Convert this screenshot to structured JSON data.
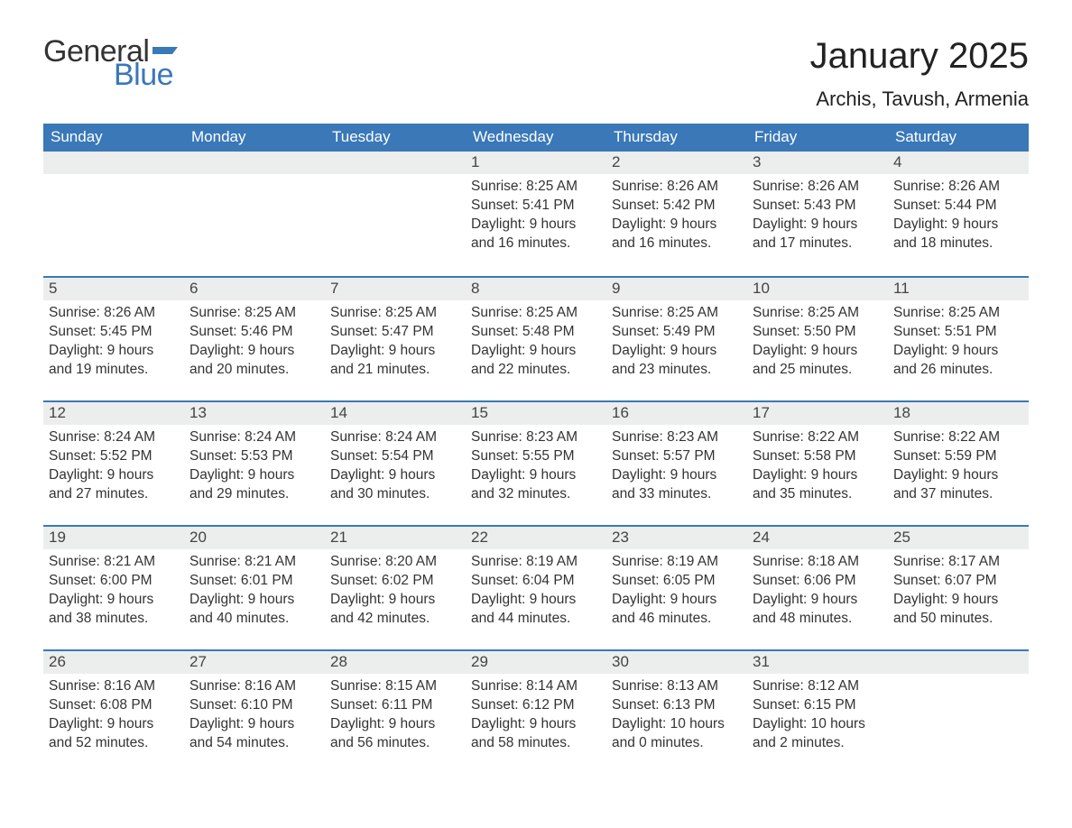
{
  "logo": {
    "text1": "General",
    "text2": "Blue",
    "flag_color": "#3a78b8"
  },
  "title": "January 2025",
  "location": "Archis, Tavush, Armenia",
  "colors": {
    "header_bg": "#3a78b8",
    "daynum_bg": "#eceded",
    "week_border": "#3a78b8",
    "text": "#333333",
    "background": "#ffffff"
  },
  "typography": {
    "title_fontsize": 40,
    "location_fontsize": 22,
    "dow_fontsize": 17,
    "daynum_fontsize": 17,
    "body_fontsize": 15.5
  },
  "layout": {
    "columns": 7,
    "rows": 5,
    "cell_min_height": 138
  },
  "days_of_week": [
    "Sunday",
    "Monday",
    "Tuesday",
    "Wednesday",
    "Thursday",
    "Friday",
    "Saturday"
  ],
  "weeks": [
    [
      {
        "n": "",
        "sunrise": "",
        "sunset": "",
        "daylight": ""
      },
      {
        "n": "",
        "sunrise": "",
        "sunset": "",
        "daylight": ""
      },
      {
        "n": "",
        "sunrise": "",
        "sunset": "",
        "daylight": ""
      },
      {
        "n": "1",
        "sunrise": "8:25 AM",
        "sunset": "5:41 PM",
        "daylight": "9 hours and 16 minutes."
      },
      {
        "n": "2",
        "sunrise": "8:26 AM",
        "sunset": "5:42 PM",
        "daylight": "9 hours and 16 minutes."
      },
      {
        "n": "3",
        "sunrise": "8:26 AM",
        "sunset": "5:43 PM",
        "daylight": "9 hours and 17 minutes."
      },
      {
        "n": "4",
        "sunrise": "8:26 AM",
        "sunset": "5:44 PM",
        "daylight": "9 hours and 18 minutes."
      }
    ],
    [
      {
        "n": "5",
        "sunrise": "8:26 AM",
        "sunset": "5:45 PM",
        "daylight": "9 hours and 19 minutes."
      },
      {
        "n": "6",
        "sunrise": "8:25 AM",
        "sunset": "5:46 PM",
        "daylight": "9 hours and 20 minutes."
      },
      {
        "n": "7",
        "sunrise": "8:25 AM",
        "sunset": "5:47 PM",
        "daylight": "9 hours and 21 minutes."
      },
      {
        "n": "8",
        "sunrise": "8:25 AM",
        "sunset": "5:48 PM",
        "daylight": "9 hours and 22 minutes."
      },
      {
        "n": "9",
        "sunrise": "8:25 AM",
        "sunset": "5:49 PM",
        "daylight": "9 hours and 23 minutes."
      },
      {
        "n": "10",
        "sunrise": "8:25 AM",
        "sunset": "5:50 PM",
        "daylight": "9 hours and 25 minutes."
      },
      {
        "n": "11",
        "sunrise": "8:25 AM",
        "sunset": "5:51 PM",
        "daylight": "9 hours and 26 minutes."
      }
    ],
    [
      {
        "n": "12",
        "sunrise": "8:24 AM",
        "sunset": "5:52 PM",
        "daylight": "9 hours and 27 minutes."
      },
      {
        "n": "13",
        "sunrise": "8:24 AM",
        "sunset": "5:53 PM",
        "daylight": "9 hours and 29 minutes."
      },
      {
        "n": "14",
        "sunrise": "8:24 AM",
        "sunset": "5:54 PM",
        "daylight": "9 hours and 30 minutes."
      },
      {
        "n": "15",
        "sunrise": "8:23 AM",
        "sunset": "5:55 PM",
        "daylight": "9 hours and 32 minutes."
      },
      {
        "n": "16",
        "sunrise": "8:23 AM",
        "sunset": "5:57 PM",
        "daylight": "9 hours and 33 minutes."
      },
      {
        "n": "17",
        "sunrise": "8:22 AM",
        "sunset": "5:58 PM",
        "daylight": "9 hours and 35 minutes."
      },
      {
        "n": "18",
        "sunrise": "8:22 AM",
        "sunset": "5:59 PM",
        "daylight": "9 hours and 37 minutes."
      }
    ],
    [
      {
        "n": "19",
        "sunrise": "8:21 AM",
        "sunset": "6:00 PM",
        "daylight": "9 hours and 38 minutes."
      },
      {
        "n": "20",
        "sunrise": "8:21 AM",
        "sunset": "6:01 PM",
        "daylight": "9 hours and 40 minutes."
      },
      {
        "n": "21",
        "sunrise": "8:20 AM",
        "sunset": "6:02 PM",
        "daylight": "9 hours and 42 minutes."
      },
      {
        "n": "22",
        "sunrise": "8:19 AM",
        "sunset": "6:04 PM",
        "daylight": "9 hours and 44 minutes."
      },
      {
        "n": "23",
        "sunrise": "8:19 AM",
        "sunset": "6:05 PM",
        "daylight": "9 hours and 46 minutes."
      },
      {
        "n": "24",
        "sunrise": "8:18 AM",
        "sunset": "6:06 PM",
        "daylight": "9 hours and 48 minutes."
      },
      {
        "n": "25",
        "sunrise": "8:17 AM",
        "sunset": "6:07 PM",
        "daylight": "9 hours and 50 minutes."
      }
    ],
    [
      {
        "n": "26",
        "sunrise": "8:16 AM",
        "sunset": "6:08 PM",
        "daylight": "9 hours and 52 minutes."
      },
      {
        "n": "27",
        "sunrise": "8:16 AM",
        "sunset": "6:10 PM",
        "daylight": "9 hours and 54 minutes."
      },
      {
        "n": "28",
        "sunrise": "8:15 AM",
        "sunset": "6:11 PM",
        "daylight": "9 hours and 56 minutes."
      },
      {
        "n": "29",
        "sunrise": "8:14 AM",
        "sunset": "6:12 PM",
        "daylight": "9 hours and 58 minutes."
      },
      {
        "n": "30",
        "sunrise": "8:13 AM",
        "sunset": "6:13 PM",
        "daylight": "10 hours and 0 minutes."
      },
      {
        "n": "31",
        "sunrise": "8:12 AM",
        "sunset": "6:15 PM",
        "daylight": "10 hours and 2 minutes."
      },
      {
        "n": "",
        "sunrise": "",
        "sunset": "",
        "daylight": ""
      }
    ]
  ],
  "labels": {
    "sunrise": "Sunrise:",
    "sunset": "Sunset:",
    "daylight": "Daylight:"
  }
}
